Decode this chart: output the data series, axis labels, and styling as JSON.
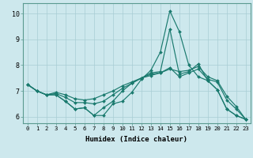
{
  "xlabel": "Humidex (Indice chaleur)",
  "ylabel": "",
  "background_color": "#cde8ed",
  "grid_color": "#a8cdd4",
  "line_color": "#1a7a6e",
  "xlim": [
    -0.5,
    23.5
  ],
  "ylim": [
    5.75,
    10.4
  ],
  "xticks": [
    0,
    1,
    2,
    3,
    4,
    5,
    6,
    7,
    8,
    9,
    10,
    11,
    12,
    13,
    14,
    15,
    16,
    17,
    18,
    19,
    20,
    21,
    22,
    23
  ],
  "yticks": [
    6,
    7,
    8,
    9,
    10
  ],
  "series": [
    [
      7.25,
      7.0,
      6.85,
      6.85,
      6.6,
      6.3,
      6.35,
      6.05,
      6.05,
      6.5,
      6.6,
      6.95,
      7.45,
      7.8,
      8.5,
      10.1,
      9.3,
      8.0,
      7.55,
      7.4,
      7.05,
      6.3,
      6.05,
      5.9
    ],
    [
      7.25,
      7.0,
      6.85,
      6.85,
      6.6,
      6.3,
      6.35,
      6.05,
      6.35,
      6.6,
      7.0,
      7.3,
      7.5,
      7.7,
      7.75,
      9.4,
      7.65,
      7.75,
      8.05,
      7.4,
      7.05,
      6.3,
      6.05,
      5.9
    ],
    [
      7.25,
      7.0,
      6.85,
      6.9,
      6.75,
      6.55,
      6.55,
      6.5,
      6.6,
      6.85,
      7.1,
      7.3,
      7.5,
      7.65,
      7.7,
      7.9,
      7.55,
      7.7,
      7.85,
      7.45,
      7.35,
      6.65,
      6.3,
      5.9
    ],
    [
      7.25,
      7.0,
      6.85,
      6.95,
      6.85,
      6.7,
      6.65,
      6.7,
      6.85,
      7.0,
      7.2,
      7.35,
      7.5,
      7.6,
      7.7,
      7.85,
      7.75,
      7.8,
      7.95,
      7.55,
      7.4,
      6.8,
      6.4,
      5.9
    ]
  ]
}
